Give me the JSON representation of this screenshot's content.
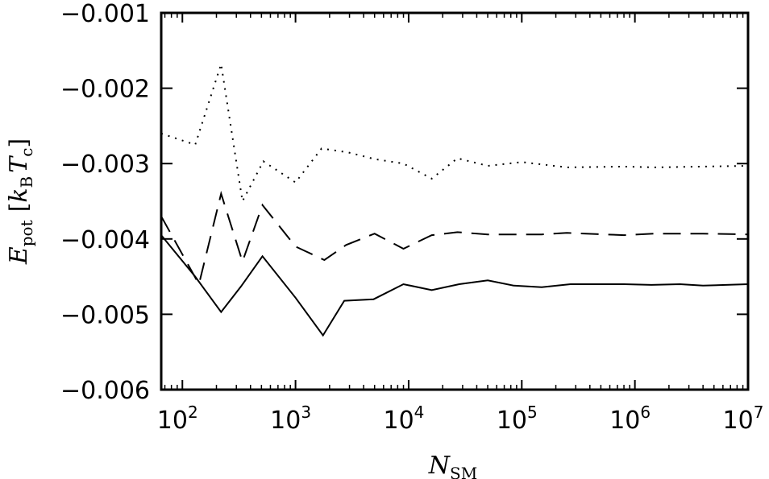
{
  "chart_data": {
    "type": "line",
    "xscale": "log",
    "xlim": [
      65,
      10000000
    ],
    "ylim": [
      -0.006,
      -0.001
    ],
    "grid": false,
    "xlabel": {
      "symbol": "N",
      "subscript": "SM"
    },
    "ylabel": {
      "symbol": "E",
      "subscript": "pot",
      "unit_open": "[",
      "unit_symbol": "k",
      "unit_sub1": "B",
      "unit_symbol2": "T",
      "unit_sub2": "c",
      "unit_close": "]"
    },
    "x_ticks": [
      {
        "value": 100,
        "base": "10",
        "exp": "2"
      },
      {
        "value": 1000,
        "base": "10",
        "exp": "3"
      },
      {
        "value": 10000,
        "base": "10",
        "exp": "4"
      },
      {
        "value": 100000,
        "base": "10",
        "exp": "5"
      },
      {
        "value": 1000000,
        "base": "10",
        "exp": "6"
      },
      {
        "value": 10000000,
        "base": "10",
        "exp": "7"
      }
    ],
    "y_ticks": [
      {
        "value": -0.001,
        "label": "−0.001"
      },
      {
        "value": -0.002,
        "label": "−0.002"
      },
      {
        "value": -0.003,
        "label": "−0.003"
      },
      {
        "value": -0.004,
        "label": "−0.004"
      },
      {
        "value": -0.005,
        "label": "−0.005"
      },
      {
        "value": -0.006,
        "label": "−0.006"
      }
    ],
    "series": [
      {
        "style": "dotted",
        "points": [
          [
            65,
            -0.0026
          ],
          [
            130,
            -0.00275
          ],
          [
            220,
            -0.00168
          ],
          [
            340,
            -0.0035
          ],
          [
            520,
            -0.00297
          ],
          [
            1000,
            -0.00325
          ],
          [
            1700,
            -0.0028
          ],
          [
            2900,
            -0.00285
          ],
          [
            5000,
            -0.00294
          ],
          [
            9000,
            -0.003
          ],
          [
            16000,
            -0.0032
          ],
          [
            27000,
            -0.00293
          ],
          [
            50000,
            -0.00303
          ],
          [
            100000,
            -0.00298
          ],
          [
            250000,
            -0.00305
          ],
          [
            800000,
            -0.00304
          ],
          [
            1500000,
            -0.00305
          ],
          [
            4000000,
            -0.00304
          ],
          [
            10000000,
            -0.00303
          ]
        ]
      },
      {
        "style": "dashed",
        "points": [
          [
            65,
            -0.0037
          ],
          [
            140,
            -0.0046
          ],
          [
            220,
            -0.0034
          ],
          [
            340,
            -0.0043
          ],
          [
            510,
            -0.00355
          ],
          [
            1000,
            -0.0041
          ],
          [
            1800,
            -0.00428
          ],
          [
            2800,
            -0.00408
          ],
          [
            5000,
            -0.00393
          ],
          [
            9000,
            -0.00413
          ],
          [
            16000,
            -0.00395
          ],
          [
            27000,
            -0.00391
          ],
          [
            50000,
            -0.00394
          ],
          [
            150000,
            -0.00394
          ],
          [
            250000,
            -0.00392
          ],
          [
            800000,
            -0.00395
          ],
          [
            1500000,
            -0.00393
          ],
          [
            4000000,
            -0.00393
          ],
          [
            10000000,
            -0.00394
          ]
        ]
      },
      {
        "style": "solid",
        "points": [
          [
            65,
            -0.00395
          ],
          [
            130,
            -0.0045
          ],
          [
            220,
            -0.00497
          ],
          [
            330,
            -0.00463
          ],
          [
            510,
            -0.00423
          ],
          [
            1000,
            -0.00478
          ],
          [
            1750,
            -0.00528
          ],
          [
            2700,
            -0.00482
          ],
          [
            4900,
            -0.0048
          ],
          [
            9000,
            -0.0046
          ],
          [
            16000,
            -0.00468
          ],
          [
            28000,
            -0.0046
          ],
          [
            50000,
            -0.00455
          ],
          [
            85000,
            -0.00462
          ],
          [
            150000,
            -0.00464
          ],
          [
            270000,
            -0.0046
          ],
          [
            800000,
            -0.0046
          ],
          [
            1400000,
            -0.00461
          ],
          [
            2500000,
            -0.0046
          ],
          [
            4000000,
            -0.00462
          ],
          [
            10000000,
            -0.0046
          ]
        ]
      }
    ]
  }
}
